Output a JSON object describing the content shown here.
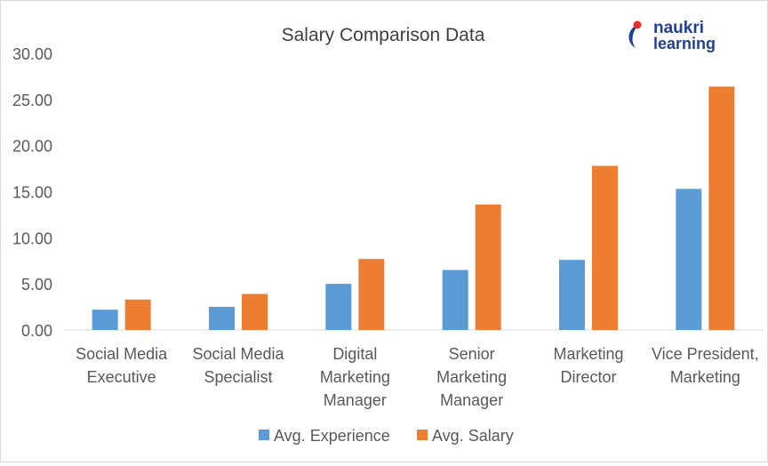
{
  "chart_data": {
    "type": "bar",
    "title": "Salary Comparison Data",
    "xlabel": "",
    "ylabel": "",
    "ylim": [
      0,
      30
    ],
    "ytick_step": 5,
    "ytick_labels": [
      "0.00",
      "5.00",
      "10.00",
      "15.00",
      "20.00",
      "25.00",
      "30.00"
    ],
    "grid": false,
    "legend": "bottom",
    "categories": [
      [
        "Social Media",
        "Executive"
      ],
      [
        "Social Media",
        "Specialist"
      ],
      [
        "Digital",
        "Marketing",
        "Manager"
      ],
      [
        "Senior",
        "Marketing",
        "Manager"
      ],
      [
        "Marketing",
        "Director"
      ],
      [
        "Vice President,",
        "Marketing"
      ]
    ],
    "series": [
      {
        "name": "Avg. Experience",
        "color": "#5b9bd5",
        "values": [
          2.2,
          2.5,
          5.0,
          6.5,
          7.6,
          15.3
        ]
      },
      {
        "name": "Avg. Salary",
        "color": "#ed7d31",
        "values": [
          3.3,
          3.9,
          7.7,
          13.6,
          17.8,
          26.4
        ]
      }
    ]
  },
  "logo": {
    "text_top": "naukri",
    "text_bottom": "learning",
    "icon": "naukri-swoosh-icon",
    "colors": {
      "navy": "#1f3f99",
      "red": "#e8312f"
    }
  }
}
